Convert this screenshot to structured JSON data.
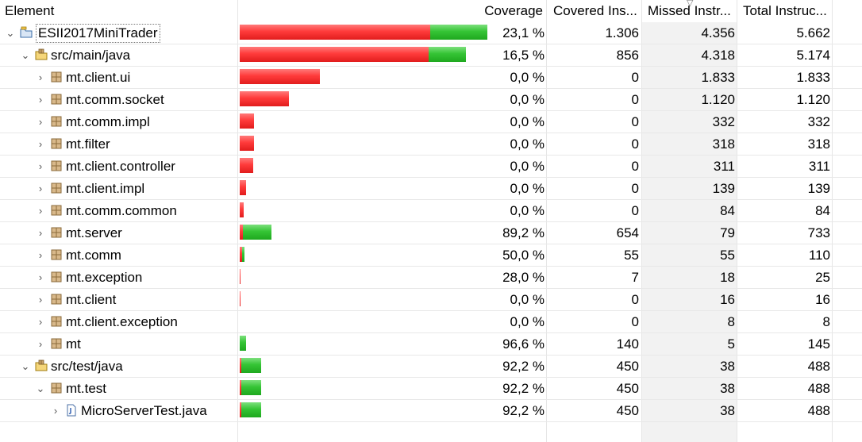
{
  "headers": {
    "element": "Element",
    "coverage": "Coverage",
    "covered": "Covered Ins...",
    "missed": "Missed Instr...",
    "total": "Total Instruc..."
  },
  "colors": {
    "missed": "#e11d1d",
    "covered": "#1fa81f"
  },
  "rows": [
    {
      "depth": 0,
      "expanded": true,
      "icon": "project-icon",
      "label": "ESII2017MiniTrader",
      "coverage": "23,1 %",
      "covered": "1.306",
      "missed": "4.356",
      "total": "5.662",
      "covered_n": 1306,
      "missed_n": 4356
    },
    {
      "depth": 1,
      "expanded": true,
      "icon": "source-folder-icon",
      "label": "src/main/java",
      "coverage": "16,5 %",
      "covered": "856",
      "missed": "4.318",
      "total": "5.174",
      "covered_n": 856,
      "missed_n": 4318
    },
    {
      "depth": 2,
      "expanded": false,
      "icon": "package-icon",
      "label": "mt.client.ui",
      "coverage": "0,0 %",
      "covered": "0",
      "missed": "1.833",
      "total": "1.833",
      "covered_n": 0,
      "missed_n": 1833
    },
    {
      "depth": 2,
      "expanded": false,
      "icon": "package-icon",
      "label": "mt.comm.socket",
      "coverage": "0,0 %",
      "covered": "0",
      "missed": "1.120",
      "total": "1.120",
      "covered_n": 0,
      "missed_n": 1120
    },
    {
      "depth": 2,
      "expanded": false,
      "icon": "package-icon",
      "label": "mt.comm.impl",
      "coverage": "0,0 %",
      "covered": "0",
      "missed": "332",
      "total": "332",
      "covered_n": 0,
      "missed_n": 332
    },
    {
      "depth": 2,
      "expanded": false,
      "icon": "package-icon",
      "label": "mt.filter",
      "coverage": "0,0 %",
      "covered": "0",
      "missed": "318",
      "total": "318",
      "covered_n": 0,
      "missed_n": 318
    },
    {
      "depth": 2,
      "expanded": false,
      "icon": "package-icon",
      "label": "mt.client.controller",
      "coverage": "0,0 %",
      "covered": "0",
      "missed": "311",
      "total": "311",
      "covered_n": 0,
      "missed_n": 311
    },
    {
      "depth": 2,
      "expanded": false,
      "icon": "package-icon",
      "label": "mt.client.impl",
      "coverage": "0,0 %",
      "covered": "0",
      "missed": "139",
      "total": "139",
      "covered_n": 0,
      "missed_n": 139
    },
    {
      "depth": 2,
      "expanded": false,
      "icon": "package-icon",
      "label": "mt.comm.common",
      "coverage": "0,0 %",
      "covered": "0",
      "missed": "84",
      "total": "84",
      "covered_n": 0,
      "missed_n": 84
    },
    {
      "depth": 2,
      "expanded": false,
      "icon": "package-icon",
      "label": "mt.server",
      "coverage": "89,2 %",
      "covered": "654",
      "missed": "79",
      "total": "733",
      "covered_n": 654,
      "missed_n": 79
    },
    {
      "depth": 2,
      "expanded": false,
      "icon": "package-icon",
      "label": "mt.comm",
      "coverage": "50,0 %",
      "covered": "55",
      "missed": "55",
      "total": "110",
      "covered_n": 55,
      "missed_n": 55
    },
    {
      "depth": 2,
      "expanded": false,
      "icon": "package-icon",
      "label": "mt.exception",
      "coverage": "28,0 %",
      "covered": "7",
      "missed": "18",
      "total": "25",
      "covered_n": 7,
      "missed_n": 18
    },
    {
      "depth": 2,
      "expanded": false,
      "icon": "package-icon",
      "label": "mt.client",
      "coverage": "0,0 %",
      "covered": "0",
      "missed": "16",
      "total": "16",
      "covered_n": 0,
      "missed_n": 16
    },
    {
      "depth": 2,
      "expanded": false,
      "icon": "package-icon",
      "label": "mt.client.exception",
      "coverage": "0,0 %",
      "covered": "0",
      "missed": "8",
      "total": "8",
      "covered_n": 0,
      "missed_n": 8
    },
    {
      "depth": 2,
      "expanded": false,
      "icon": "package-icon",
      "label": "mt",
      "coverage": "96,6 %",
      "covered": "140",
      "missed": "5",
      "total": "145",
      "covered_n": 140,
      "missed_n": 5
    },
    {
      "depth": 1,
      "expanded": true,
      "icon": "source-folder-icon",
      "label": "src/test/java",
      "coverage": "92,2 %",
      "covered": "450",
      "missed": "38",
      "total": "488",
      "covered_n": 450,
      "missed_n": 38
    },
    {
      "depth": 2,
      "expanded": true,
      "icon": "package-icon",
      "label": "mt.test",
      "coverage": "92,2 %",
      "covered": "450",
      "missed": "38",
      "total": "488",
      "covered_n": 450,
      "missed_n": 38
    },
    {
      "depth": 3,
      "expanded": false,
      "icon": "java-file-icon",
      "label": "MicroServerTest.java",
      "coverage": "92,2 %",
      "covered": "450",
      "missed": "38",
      "total": "488",
      "covered_n": 450,
      "missed_n": 38
    }
  ]
}
